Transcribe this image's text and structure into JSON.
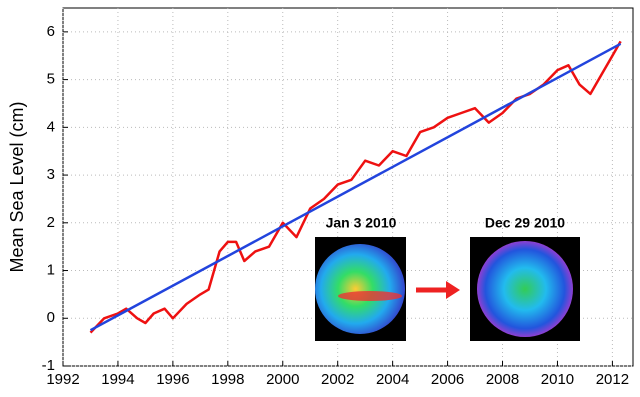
{
  "chart_data": {
    "type": "line",
    "y_label": "Mean Sea Level (cm)",
    "annotations": [
      "Jan 3 2010",
      "Dec 29 2010"
    ],
    "xlim": [
      1992,
      2012.75
    ],
    "xticks": [
      1992,
      1994,
      1996,
      1998,
      2000,
      2002,
      2004,
      2006,
      2008,
      2010,
      2012
    ],
    "ylim": [
      -1,
      6.5
    ],
    "yticks": [
      -1,
      0,
      1,
      2,
      3,
      4,
      5,
      6
    ],
    "grid": true,
    "series": [
      {
        "color": "#ee1111",
        "x": [
          1993.0,
          1993.5,
          1994.0,
          1994.3,
          1994.7,
          1995.0,
          1995.3,
          1995.7,
          1996.0,
          1996.5,
          1997.0,
          1997.3,
          1997.7,
          1998.0,
          1998.3,
          1998.6,
          1999.0,
          1999.5,
          2000.0,
          2000.5,
          2001.0,
          2001.5,
          2002.0,
          2002.5,
          2003.0,
          2003.5,
          2004.0,
          2004.5,
          2005.0,
          2005.5,
          2006.0,
          2006.5,
          2007.0,
          2007.5,
          2008.0,
          2008.5,
          2009.0,
          2009.5,
          2010.0,
          2010.4,
          2010.8,
          2011.2,
          2011.6,
          2012.0,
          2012.3
        ],
        "values": [
          -0.3,
          0.0,
          0.1,
          0.2,
          0.0,
          -0.1,
          0.1,
          0.2,
          0.0,
          0.3,
          0.5,
          0.6,
          1.4,
          1.6,
          1.6,
          1.2,
          1.4,
          1.5,
          2.0,
          1.7,
          2.3,
          2.5,
          2.8,
          2.9,
          3.3,
          3.2,
          3.5,
          3.4,
          3.9,
          4.0,
          4.2,
          4.3,
          4.4,
          4.1,
          4.3,
          4.6,
          4.7,
          4.9,
          5.2,
          5.3,
          4.9,
          4.7,
          5.1,
          5.5,
          5.8
        ]
      },
      {
        "color": "#2244dd",
        "x": [
          1993.0,
          2012.3
        ],
        "values": [
          -0.25,
          5.75
        ]
      }
    ]
  }
}
